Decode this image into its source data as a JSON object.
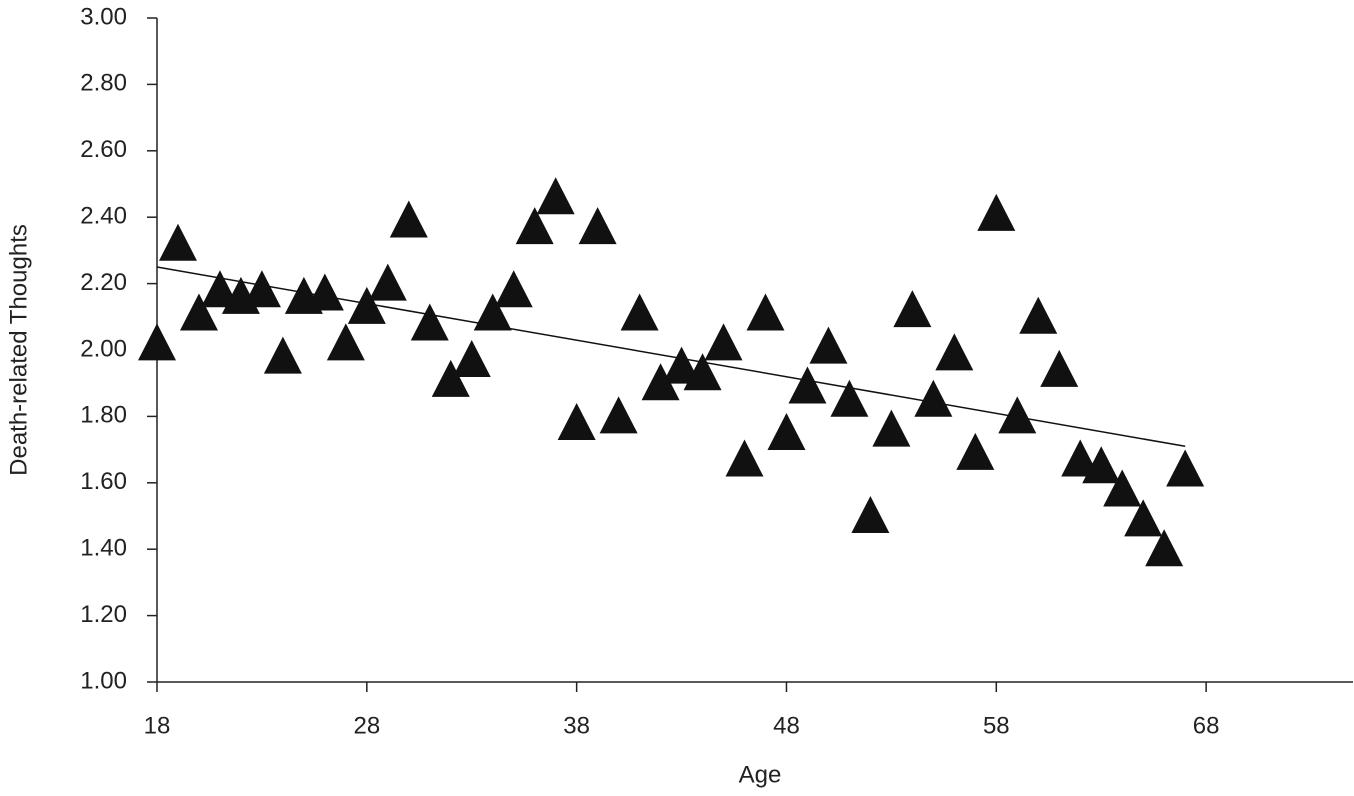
{
  "chart_data": {
    "type": "scatter",
    "xlabel": "Age",
    "ylabel": "Death-related Thoughts",
    "xlim": [
      18,
      75
    ],
    "xticks": [
      18,
      28,
      38,
      48,
      58,
      68
    ],
    "ylim": [
      1,
      3
    ],
    "yticks": [
      {
        "value": 1,
        "label": "1.00"
      },
      {
        "value": 1.2,
        "label": "1.20"
      },
      {
        "value": 1.4,
        "label": "1.40"
      },
      {
        "value": 1.6,
        "label": "1.60"
      },
      {
        "value": 1.8,
        "label": "1.80"
      },
      {
        "value": 2,
        "label": "2.00"
      },
      {
        "value": 2.2,
        "label": "2.20"
      },
      {
        "value": 2.4,
        "label": "2.40"
      },
      {
        "value": 2.6,
        "label": "2.60"
      },
      {
        "value": 2.8,
        "label": "2.80"
      },
      {
        "value": 3,
        "label": "3.00"
      }
    ],
    "color": "#111111",
    "x": [
      18,
      19,
      20,
      21,
      22,
      23,
      24,
      25,
      26,
      27,
      28,
      29,
      30,
      31,
      32,
      33,
      34,
      35,
      36,
      37,
      38,
      39,
      40,
      41,
      42,
      43,
      44,
      45,
      46,
      47,
      48,
      49,
      50,
      51,
      52,
      53,
      54,
      55,
      56,
      57,
      58,
      59,
      60,
      61,
      62,
      63,
      64,
      65,
      66,
      67
    ],
    "y": [
      2.02,
      2.32,
      2.11,
      2.18,
      2.16,
      2.18,
      1.98,
      2.16,
      2.17,
      2.02,
      2.13,
      2.2,
      2.39,
      2.08,
      1.91,
      1.97,
      2.11,
      2.18,
      2.37,
      2.46,
      1.78,
      2.37,
      1.8,
      2.11,
      1.9,
      1.95,
      1.93,
      2.02,
      1.67,
      2.11,
      1.75,
      1.89,
      2.01,
      1.85,
      1.5,
      1.76,
      2.12,
      1.85,
      1.99,
      1.69,
      2.41,
      1.8,
      2.1,
      1.94,
      1.67,
      1.65,
      1.58,
      1.49,
      1.4,
      1.64
    ],
    "trendline": {
      "x": [
        18,
        67
      ],
      "y": [
        2.25,
        1.71
      ]
    }
  }
}
